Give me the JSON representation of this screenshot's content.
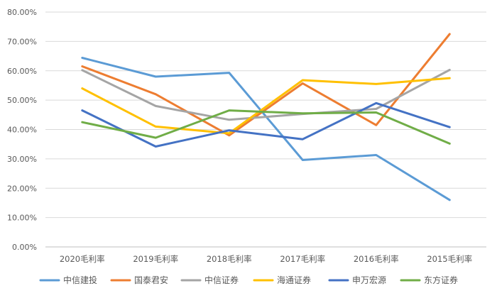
{
  "chart_data": {
    "type": "line",
    "categories": [
      "2020毛利率",
      "2019毛利率",
      "2018毛利率",
      "2017毛利率",
      "2016毛利率",
      "2015毛利率"
    ],
    "ylim": [
      0,
      80
    ],
    "yticks": [
      "0.00%",
      "10.00%",
      "20.00%",
      "30.00%",
      "40.00%",
      "50.00%",
      "60.00%",
      "70.00%",
      "80.00%"
    ],
    "grid": true,
    "legend_position": "bottom",
    "series": [
      {
        "name": "中信建投",
        "color": "#5b9bd5",
        "values": [
          64.4,
          58.0,
          59.3,
          29.6,
          31.3,
          16.0
        ]
      },
      {
        "name": "国泰君安",
        "color": "#ed7d31",
        "values": [
          61.5,
          52.0,
          38.0,
          55.7,
          41.5,
          72.5
        ]
      },
      {
        "name": "中信证券",
        "color": "#a5a5a5",
        "values": [
          60.2,
          48.0,
          43.3,
          45.3,
          47.0,
          60.3
        ]
      },
      {
        "name": "海通证券",
        "color": "#ffc000",
        "values": [
          54.0,
          41.0,
          38.7,
          56.8,
          55.5,
          57.5
        ]
      },
      {
        "name": "申万宏源",
        "color": "#4472c4",
        "values": [
          46.5,
          34.2,
          39.7,
          36.7,
          49.0,
          40.8
        ]
      },
      {
        "name": "东方证券",
        "color": "#70ad47",
        "values": [
          42.5,
          37.2,
          46.5,
          45.5,
          45.8,
          35.2
        ]
      }
    ]
  }
}
